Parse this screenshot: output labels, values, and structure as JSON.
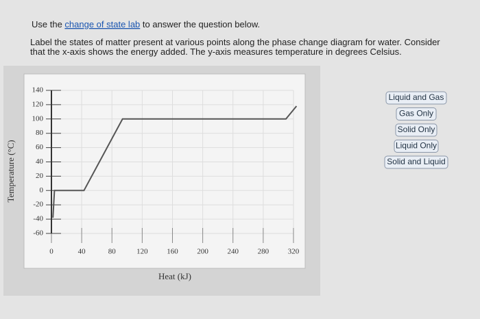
{
  "question": {
    "intro": [
      "Use the ",
      "change of state lab",
      " to answer the question below."
    ],
    "line1": "Label the states of matter present at various points along the phase change diagram for water. Consider",
    "line2": "that the x-axis shows the energy added. The y-axis measures temperature in degrees Celsius."
  },
  "chart_data": {
    "type": "line",
    "x_label": "Heat (kJ)",
    "y_label": "Temperature (°C)",
    "x": [
      2,
      4,
      43,
      94,
      310,
      324
    ],
    "values": [
      -38,
      0,
      0,
      100,
      100,
      118
    ],
    "color": "#555555",
    "xlim": [
      0,
      320
    ],
    "xticks": [
      0,
      40,
      80,
      120,
      160,
      200,
      240,
      280,
      320
    ],
    "ylim": [
      -60,
      140
    ],
    "yticks": [
      -60,
      -40,
      -20,
      0,
      20,
      40,
      60,
      80,
      100,
      120,
      140
    ],
    "grid": true
  },
  "labels": [
    "Liquid and Gas",
    "Gas Only",
    "Solid Only",
    "Liquid Only",
    "Solid and Liquid"
  ]
}
